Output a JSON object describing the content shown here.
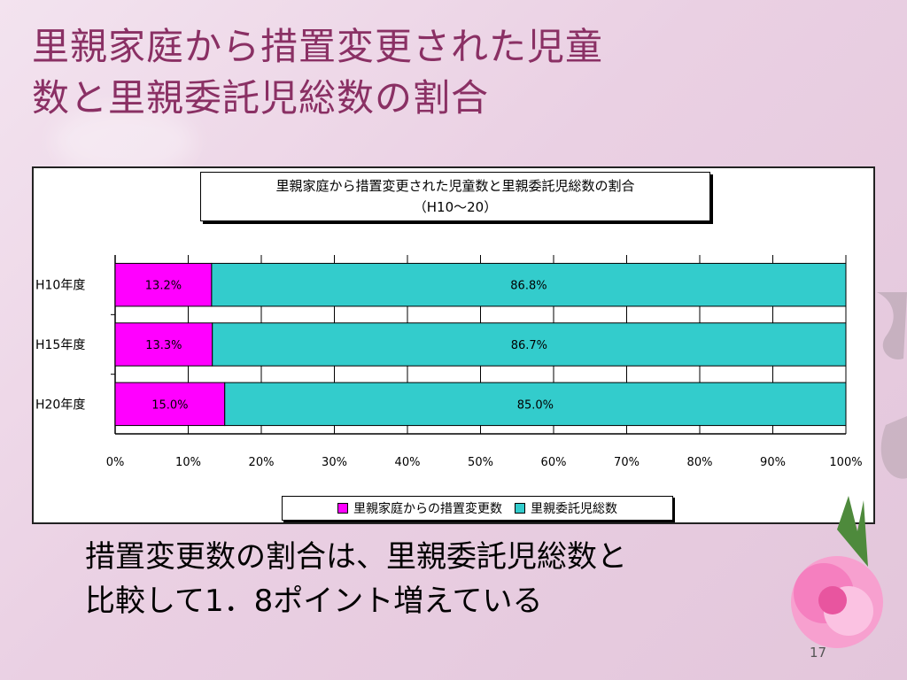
{
  "slide": {
    "title_line1": "里親家庭から措置変更された児童",
    "title_line2": "数と里親委託児総数の割合",
    "conclusion_line1": "措置変更数の割合は、里親委託児総数と",
    "conclusion_line2": "比較して1．8ポイント増えている",
    "page_number": "17"
  },
  "chart_data": {
    "type": "bar",
    "orientation": "horizontal",
    "stacked": "percent",
    "title_line1": "里親家庭から措置変更された児童数と里親委託児総数の割合",
    "title_line2": "（H10～20）",
    "categories": [
      "H10年度",
      "H15年度",
      "H20年度"
    ],
    "series": [
      {
        "name": "里親家庭からの措置変更数",
        "values": [
          13.2,
          13.3,
          15.0
        ],
        "labels": [
          "13.2%",
          "13.3%",
          "15.0%"
        ],
        "color": "#ff00ff"
      },
      {
        "name": "里親委託児総数",
        "values": [
          86.8,
          86.7,
          85.0
        ],
        "labels": [
          "86.8%",
          "86.7%",
          "85.0%"
        ],
        "color": "#33cccc"
      }
    ],
    "x_ticks": [
      "0%",
      "10%",
      "20%",
      "30%",
      "40%",
      "50%",
      "60%",
      "70%",
      "80%",
      "90%",
      "100%"
    ],
    "xlim": [
      0,
      100
    ],
    "grid": true,
    "legend_position": "bottom"
  }
}
